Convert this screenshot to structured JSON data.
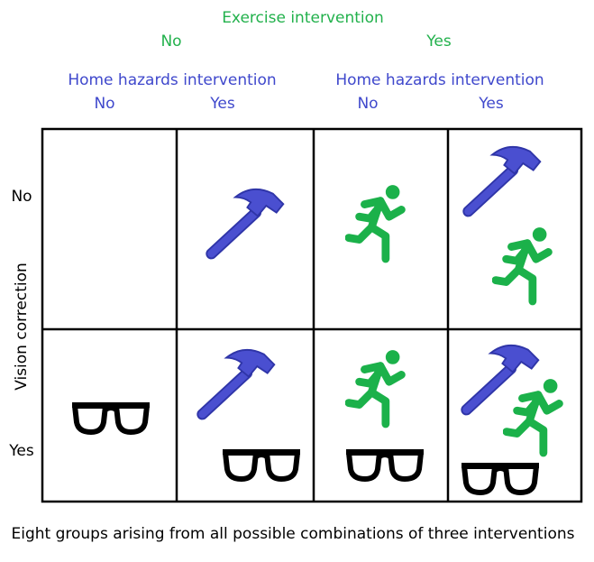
{
  "header": {
    "title": "Exercise intervention",
    "levels": [
      "No",
      "Yes"
    ]
  },
  "subheaders": [
    {
      "title": "Home hazards intervention",
      "levels": [
        "No",
        "Yes"
      ]
    },
    {
      "title": "Home hazards intervention",
      "levels": [
        "No",
        "Yes"
      ]
    }
  ],
  "rows": {
    "title": "Vision correction",
    "levels": [
      "No",
      "Yes"
    ]
  },
  "caption": "Eight groups arising from all possible combinations of three interventions"
}
